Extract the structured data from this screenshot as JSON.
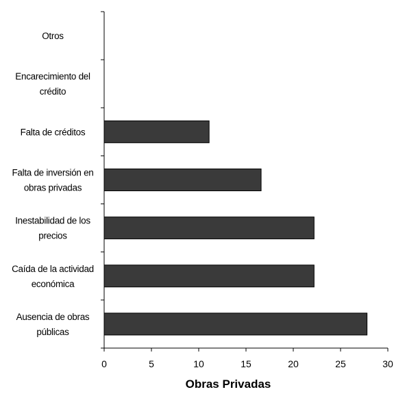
{
  "chart_data": {
    "type": "bar",
    "orientation": "horizontal",
    "categories": [
      [
        "Otros"
      ],
      [
        "Encarecimiento del",
        "crédito"
      ],
      [
        "Falta de créditos"
      ],
      [
        "Falta de inversión en",
        "obras privadas"
      ],
      [
        "Inestabilidad de los",
        "precios"
      ],
      [
        "Caída de la actividad",
        "económica"
      ],
      [
        "Ausencia de obras",
        "públicas"
      ]
    ],
    "values": [
      0,
      0,
      11.1,
      16.6,
      22.2,
      22.2,
      27.8
    ],
    "xlabel": "Obras Privadas",
    "ylabel": "",
    "xlim": [
      0,
      30
    ],
    "xticks": [
      0,
      5,
      10,
      15,
      20,
      25,
      30
    ],
    "grid": false,
    "colors": {
      "bar_fill": "#3a3a3a",
      "bar_stroke": "#000000",
      "axis": "#000000"
    }
  }
}
